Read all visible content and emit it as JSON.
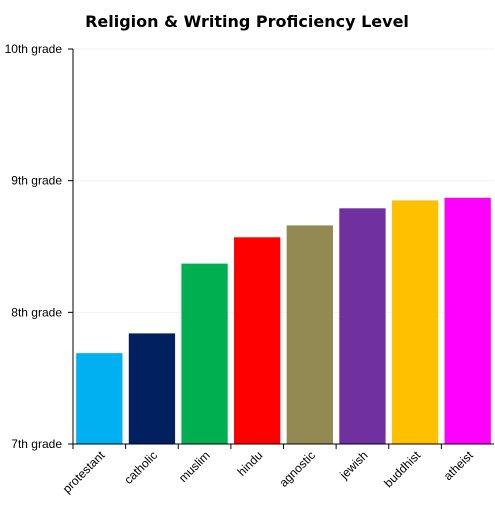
{
  "chart_data": {
    "type": "bar",
    "title": "Religion & Writing Proficiency Level",
    "categories": [
      "protestant",
      "catholic",
      "muslim",
      "hindu",
      "agnostic",
      "jewish",
      "buddhist",
      "atheist"
    ],
    "values": [
      7.69,
      7.84,
      8.37,
      8.57,
      8.66,
      8.79,
      8.85,
      8.87
    ],
    "colors": [
      "#00b0f0",
      "#002060",
      "#00b050",
      "#ff0000",
      "#938953",
      "#7030a0",
      "#ffc000",
      "#ff00ff"
    ],
    "ylim": [
      7,
      10
    ],
    "yticks": [
      {
        "value": 7,
        "label": "7th grade"
      },
      {
        "value": 8,
        "label": "8th grade"
      },
      {
        "value": 9,
        "label": "9th grade"
      },
      {
        "value": 10,
        "label": "10th grade"
      }
    ],
    "grid": true,
    "xlabel": "",
    "ylabel": ""
  }
}
